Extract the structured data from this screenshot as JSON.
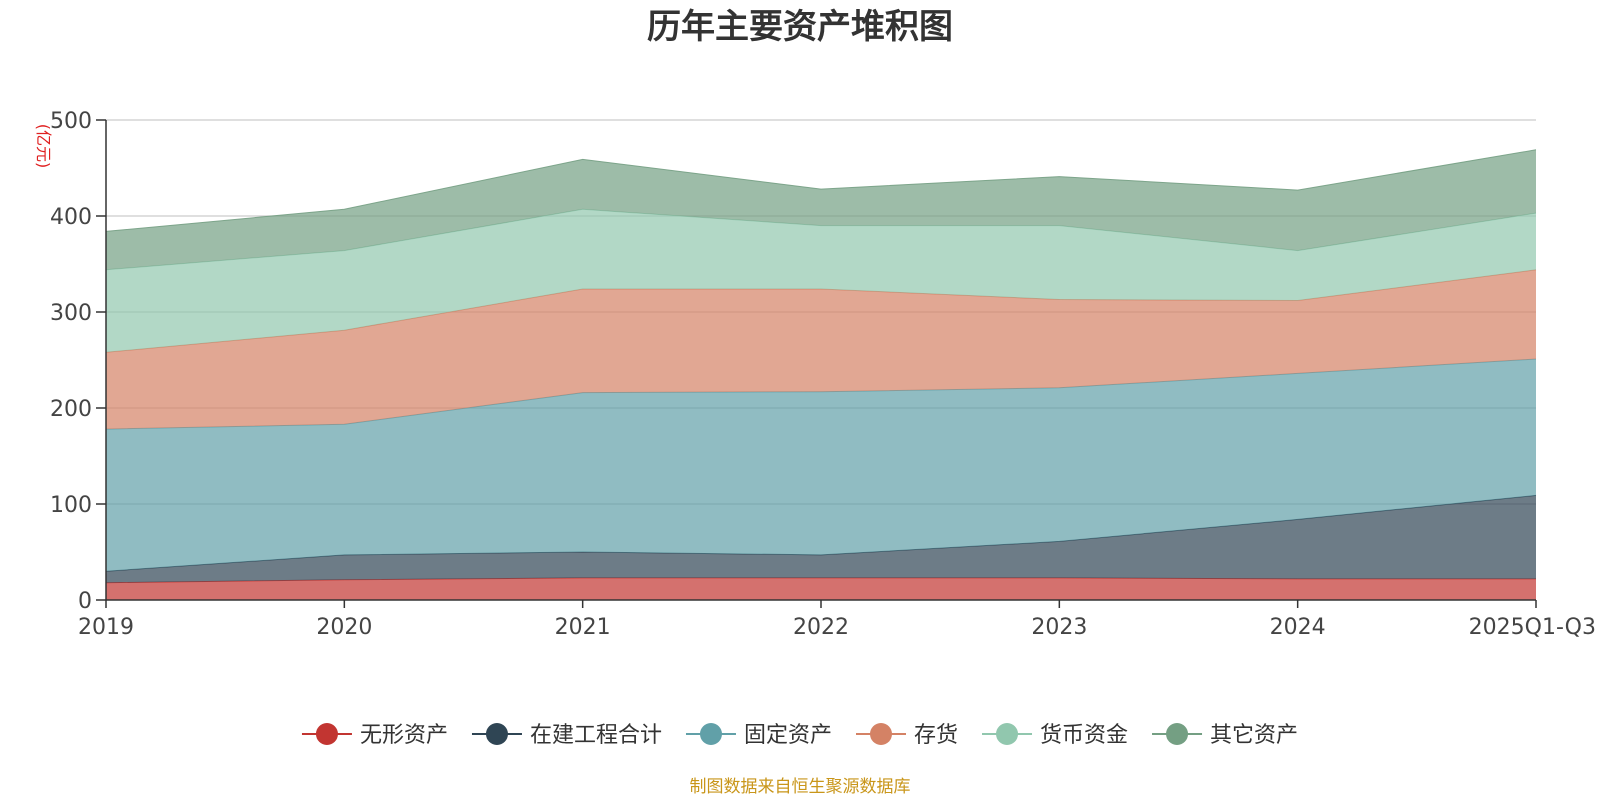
{
  "chart_data": {
    "type": "area",
    "title": "历年主要资产堆积图",
    "unit": "(亿元)",
    "stacked": true,
    "categories": [
      "2019",
      "2020",
      "2021",
      "2022",
      "2023",
      "2024",
      "2025Q1-Q3"
    ],
    "ylim": [
      0,
      500
    ],
    "yticks": [
      0,
      100,
      200,
      300,
      400,
      500
    ],
    "grid": true,
    "legend_position": "bottom",
    "series": [
      {
        "name": "无形资产",
        "color": "#c23531",
        "values": [
          18,
          21,
          23,
          23,
          23,
          22,
          22
        ]
      },
      {
        "name": "在建工程合计",
        "color": "#2f4554",
        "values": [
          12,
          26,
          27,
          24,
          38,
          62,
          87
        ]
      },
      {
        "name": "固定资产",
        "color": "#61a0a8",
        "values": [
          148,
          136,
          166,
          170,
          160,
          152,
          142
        ]
      },
      {
        "name": "存货",
        "color": "#d48265",
        "values": [
          80,
          98,
          108,
          107,
          92,
          76,
          93
        ]
      },
      {
        "name": "货币资金",
        "color": "#91c7ae",
        "values": [
          86,
          83,
          83,
          66,
          77,
          52,
          59
        ]
      },
      {
        "name": "其它资产",
        "color": "#749f83",
        "values": [
          40,
          43,
          52,
          38,
          51,
          63,
          66
        ]
      }
    ],
    "source": "制图数据来自恒生聚源数据库"
  }
}
